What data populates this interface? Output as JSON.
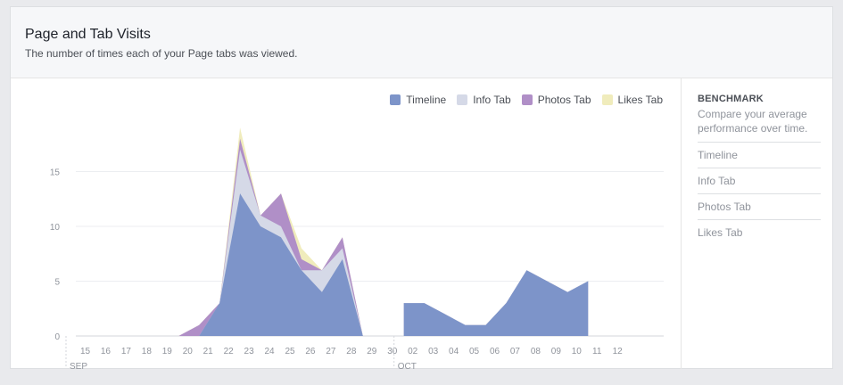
{
  "header": {
    "title": "Page and Tab Visits",
    "subtitle": "The number of times each of your Page tabs was viewed."
  },
  "sidebar": {
    "title": "BENCHMARK",
    "description": "Compare your average performance over time.",
    "items": [
      "Timeline",
      "Info Tab",
      "Photos Tab",
      "Likes Tab"
    ]
  },
  "chart_data": {
    "type": "area",
    "stacked": true,
    "x": [
      "15",
      "16",
      "17",
      "18",
      "19",
      "20",
      "21",
      "22",
      "23",
      "24",
      "25",
      "26",
      "27",
      "28",
      "29",
      "30",
      "02",
      "03",
      "04",
      "05",
      "06",
      "07",
      "08",
      "09",
      "10",
      "11",
      "12"
    ],
    "month_labels": [
      {
        "label": "SEP",
        "at": "15"
      },
      {
        "label": "OCT",
        "at": "02"
      }
    ],
    "ylim": [
      0,
      20
    ],
    "yticks": [
      0,
      5,
      10,
      15
    ],
    "grid": true,
    "legend": "top-right",
    "series": [
      {
        "name": "Timeline",
        "color": "#7d94c9",
        "values": [
          0,
          0,
          0,
          0,
          0,
          0,
          0,
          3,
          13,
          10,
          9,
          6,
          4,
          7,
          0,
          null,
          3,
          3,
          2,
          1,
          1,
          3,
          6,
          5,
          4,
          5,
          null
        ]
      },
      {
        "name": "Info Tab",
        "color": "#d5d9e7",
        "values": [
          0,
          0,
          0,
          0,
          0,
          0,
          0,
          0,
          4,
          1,
          1,
          0,
          2,
          1,
          0,
          null,
          0,
          0,
          0,
          0,
          0,
          0,
          0,
          0,
          0,
          0,
          null
        ]
      },
      {
        "name": "Photos Tab",
        "color": "#b08fc7",
        "values": [
          0,
          0,
          0,
          0,
          0,
          0,
          1,
          0,
          1,
          0,
          3,
          1,
          0,
          1,
          0,
          null,
          0,
          0,
          0,
          0,
          0,
          0,
          0,
          0,
          0,
          0,
          null
        ]
      },
      {
        "name": "Likes Tab",
        "color": "#f0ecbc",
        "values": [
          0,
          0,
          0,
          0,
          0,
          0,
          0,
          0,
          1,
          0,
          0,
          1,
          0,
          0,
          0,
          null,
          0,
          0,
          0,
          0,
          0,
          0,
          0,
          0,
          0,
          0,
          null
        ]
      }
    ]
  }
}
